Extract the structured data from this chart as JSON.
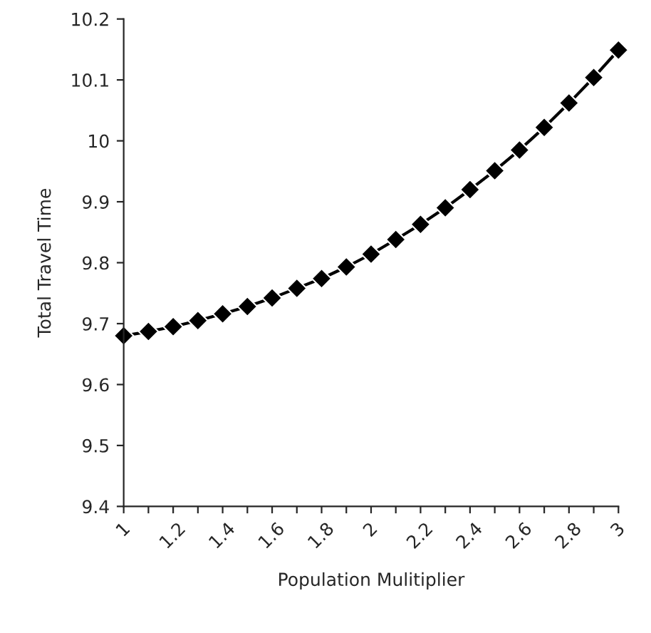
{
  "chart_data": {
    "type": "line",
    "xlabel": "Population Mulitiplier",
    "ylabel": "Total Travel Time",
    "x": [
      1,
      1.1,
      1.2,
      1.3,
      1.4,
      1.5,
      1.6,
      1.7,
      1.8,
      1.9,
      2,
      2.1,
      2.2,
      2.3,
      2.4,
      2.5,
      2.6,
      2.7,
      2.8,
      2.9,
      3
    ],
    "series": [
      {
        "color": "#000000",
        "values": [
          9.68,
          9.687,
          9.695,
          9.705,
          9.716,
          9.728,
          9.742,
          9.758,
          9.774,
          9.793,
          9.814,
          9.838,
          9.863,
          9.89,
          9.92,
          9.951,
          9.985,
          10.022,
          10.062,
          10.104,
          10.149
        ]
      }
    ],
    "xlim": [
      1,
      3
    ],
    "xticks": [
      1,
      {
        "value": 1.1,
        "label": null
      },
      1.2,
      {
        "value": 1.3,
        "label": null
      },
      1.4,
      {
        "value": 1.5,
        "label": null
      },
      1.6,
      {
        "value": 1.7,
        "label": null
      },
      1.8,
      {
        "value": 1.9,
        "label": null
      },
      2,
      {
        "value": 2.1,
        "label": null
      },
      2.2,
      {
        "value": 2.3,
        "label": null
      },
      2.4,
      {
        "value": 2.5,
        "label": null
      },
      2.6,
      {
        "value": 2.7,
        "label": null
      },
      2.8,
      {
        "value": 2.9,
        "label": null
      },
      3
    ],
    "ylim": [
      9.4,
      10.2
    ],
    "yticks": [
      9.4,
      9.5,
      9.6,
      9.7,
      9.8,
      9.9,
      10,
      10.1,
      10.2
    ],
    "grid": false,
    "marker": "diamond",
    "line_style": "solid"
  }
}
